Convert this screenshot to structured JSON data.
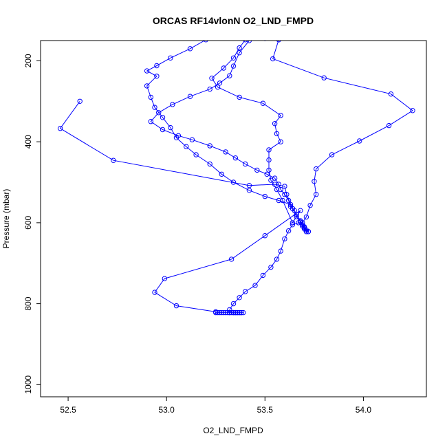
{
  "chart_data": {
    "type": "line",
    "title": "ORCAS RF14vlonN O2_LND_FMPD",
    "xlabel": "O2_LND_FMPD",
    "ylabel": "Pressure (mbar)",
    "xlim": [
      52.36,
      54.32
    ],
    "ylim": [
      1030,
      150
    ],
    "y_inverted": true,
    "x_ticks": [
      52.5,
      53.0,
      53.5,
      54.0
    ],
    "x_tick_labels": [
      "52.5",
      "53.0",
      "53.5",
      "54.0"
    ],
    "y_ticks": [
      200,
      400,
      600,
      800,
      1000
    ],
    "y_tick_labels": [
      "200",
      "400",
      "600",
      "800",
      "1000"
    ],
    "grid": false,
    "legend": false,
    "series_color": "#0000ff",
    "series": [
      {
        "x": [
          53.42,
          53.37,
          53.34,
          53.32,
          53.27,
          53.22,
          53.12,
          53.03,
          52.96,
          52.92,
          52.98,
          53.06,
          53.13,
          53.22,
          53.3,
          53.35,
          53.4,
          53.46,
          53.51,
          53.55,
          53.57,
          53.58,
          53.6,
          53.62,
          53.63,
          53.65,
          53.66,
          53.68,
          53.69,
          53.7,
          53.71,
          53.71,
          53.72
        ],
        "y": [
          150,
          180,
          213,
          237,
          255,
          270,
          288,
          308,
          328,
          350,
          370,
          385,
          395,
          410,
          425,
          440,
          455,
          470,
          480,
          490,
          505,
          518,
          530,
          545,
          560,
          570,
          580,
          595,
          605,
          615,
          622,
          622,
          622
        ]
      },
      {
        "x": [
          53.72,
          53.7,
          53.69,
          53.67,
          53.64,
          53.62,
          53.6,
          53.58,
          53.56,
          53.53,
          53.49,
          53.45,
          53.4,
          53.37,
          53.34,
          53.32
        ],
        "y": [
          622,
          612,
          608,
          600,
          605,
          620,
          640,
          670,
          690,
          710,
          730,
          755,
          770,
          785,
          800,
          815
        ]
      },
      {
        "x": [
          53.32,
          53.34,
          53.35,
          53.36,
          53.37,
          53.38,
          53.39,
          53.38,
          53.37,
          53.36,
          53.35,
          53.34,
          53.33,
          53.32,
          53.31,
          53.3,
          53.29,
          53.28,
          53.27,
          53.26,
          53.25
        ],
        "y": [
          822,
          822,
          822,
          822,
          822,
          822,
          822,
          822,
          822,
          822,
          822,
          822,
          822,
          822,
          822,
          822,
          822,
          822,
          822,
          822,
          822
        ]
      },
      {
        "x": [
          53.25,
          53.05,
          52.94,
          52.99,
          53.33,
          53.5,
          53.68,
          53.64,
          53.59,
          53.56,
          53.53,
          53.52,
          53.52,
          53.52,
          53.58,
          53.56,
          53.55,
          53.58,
          53.49,
          53.37,
          53.26,
          53.23,
          53.29,
          53.34,
          53.37,
          53.4,
          53.5,
          53.57
        ],
        "y": [
          820,
          805,
          772,
          738,
          690,
          632,
          570,
          600,
          545,
          518,
          495,
          470,
          445,
          420,
          400,
          380,
          355,
          335,
          305,
          290,
          265,
          243,
          218,
          193,
          168,
          148,
          145,
          148
        ]
      },
      {
        "x": [
          53.57,
          53.54,
          53.8,
          54.14,
          54.25,
          54.13,
          53.98,
          53.84,
          53.76,
          53.75,
          53.76,
          53.73,
          53.71,
          53.69,
          53.7,
          53.71,
          53.72
        ],
        "y": [
          148,
          195,
          242,
          282,
          323,
          360,
          398,
          432,
          467,
          498,
          530,
          557,
          586,
          600,
          610,
          618,
          622
        ]
      },
      {
        "x": [
          53.72,
          53.7,
          53.68,
          53.66,
          53.64,
          53.61,
          53.6,
          53.55,
          53.42,
          52.73,
          52.46,
          52.56
        ],
        "y": [
          622,
          612,
          598,
          585,
          565,
          530,
          510,
          505,
          508,
          446,
          367,
          300
        ]
      },
      {
        "x": [
          53.64,
          53.63,
          53.57,
          53.5,
          53.42,
          53.34,
          53.28,
          53.22,
          53.15,
          53.1,
          53.05,
          53.02,
          52.98,
          52.94,
          52.92,
          52.9,
          52.95,
          52.9,
          52.95,
          53.02,
          53.12,
          53.2,
          53.29
        ],
        "y": [
          565,
          555,
          545,
          535,
          520,
          500,
          480,
          455,
          432,
          412,
          390,
          365,
          340,
          315,
          290,
          262,
          238,
          225,
          212,
          193,
          170,
          148,
          143
        ]
      }
    ]
  }
}
